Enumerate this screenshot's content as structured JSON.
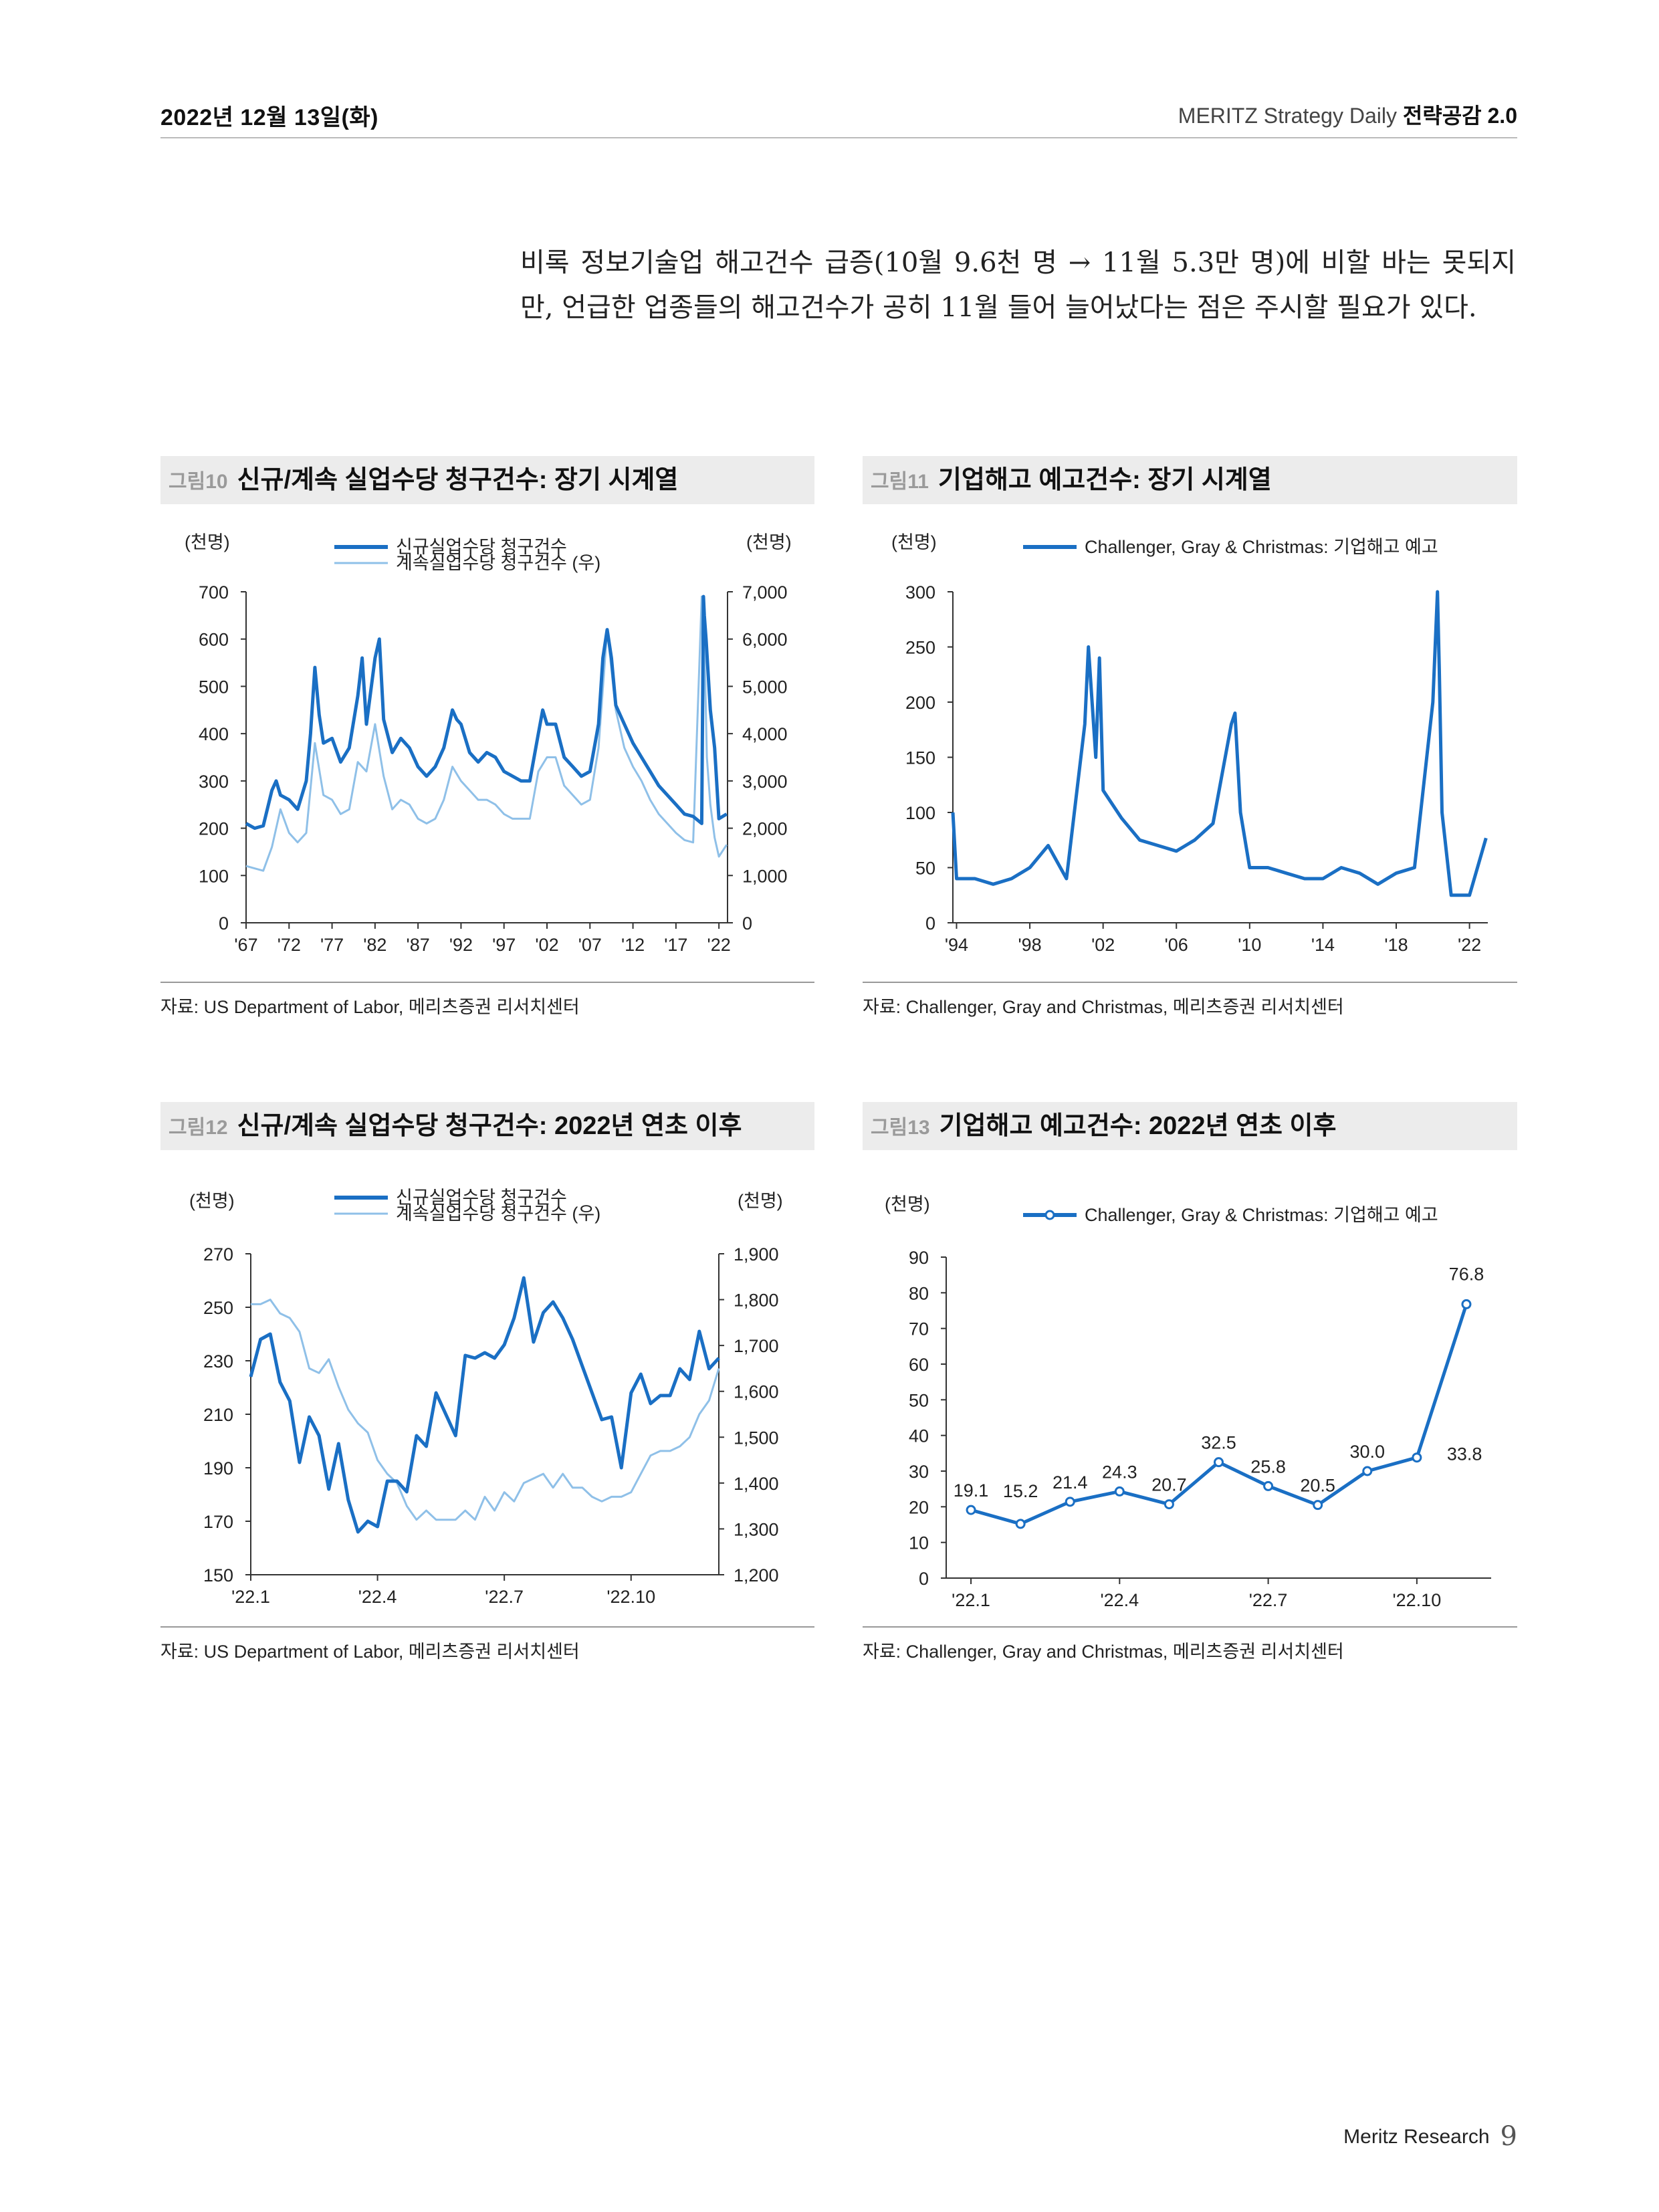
{
  "header": {
    "date": "2022년 12월 13일(화)",
    "publication": "MERITZ Strategy Daily",
    "series_name": "전략공감 2.0"
  },
  "body_text": "비록 정보기술업 해고건수 급증(10월 9.6천 명 → 11월 5.3만 명)에 비할 바는 못되지만, 언급한 업종들의 해고건수가 공히 11월 들어 늘어났다는 점은 주시할 필요가 있다.",
  "figures": [
    {
      "num": "그림10",
      "title": "신규/계속 실업수당 청구건수: 장기 시계열",
      "source": "자료: US Department of Labor, 메리츠증권 리서치센터"
    },
    {
      "num": "그림11",
      "title": "기업해고 예고건수: 장기 시계열",
      "source": "자료: Challenger, Gray and Christmas, 메리츠증권 리서치센터"
    },
    {
      "num": "그림12",
      "title": "신규/계속 실업수당 청구건수: 2022년 연초 이후",
      "source": "자료: US Department of Labor, 메리츠증권 리서치센터"
    },
    {
      "num": "그림13",
      "title": "기업해고 예고건수: 2022년 연초 이후",
      "source": "자료: Challenger, Gray and Christmas, 메리츠증권 리서치센터"
    }
  ],
  "footer": {
    "brand": "Meritz Research",
    "page": "9"
  },
  "colors": {
    "dark_series": "#1a6fc4",
    "light_series": "#8fc0e8",
    "axis": "#333333"
  },
  "chart_data": [
    {
      "id": "fig10",
      "type": "line",
      "title": "신규/계속 실업수당 청구건수: 장기 시계열",
      "yunit_left": "(천명)",
      "yunit_right": "(천명)",
      "ylim_left": [
        0,
        700
      ],
      "yticks_left": [
        "0",
        "100",
        "200",
        "300",
        "400",
        "500",
        "600",
        "700"
      ],
      "ylim_right": [
        0,
        7000
      ],
      "yticks_right": [
        "0",
        "1,000",
        "2,000",
        "3,000",
        "4,000",
        "5,000",
        "6,000",
        "7,000"
      ],
      "xlim": [
        1967,
        2023
      ],
      "xticks": [
        {
          "x": 1967,
          "label": "'67"
        },
        {
          "x": 1972,
          "label": "'72"
        },
        {
          "x": 1977,
          "label": "'77"
        },
        {
          "x": 1982,
          "label": "'82"
        },
        {
          "x": 1987,
          "label": "'87"
        },
        {
          "x": 1992,
          "label": "'92"
        },
        {
          "x": 1997,
          "label": "'97"
        },
        {
          "x": 2002,
          "label": "'02"
        },
        {
          "x": 2007,
          "label": "'07"
        },
        {
          "x": 2012,
          "label": "'12"
        },
        {
          "x": 2017,
          "label": "'17"
        },
        {
          "x": 2022,
          "label": "'22"
        }
      ],
      "series": [
        {
          "name": "신규실업수당 청구건수",
          "axis": "left",
          "style": "dark",
          "x": [
            1967,
            1968,
            1969,
            1970,
            1970.5,
            1971,
            1972,
            1973,
            1974,
            1974.5,
            1975,
            1975.5,
            1976,
            1977,
            1978,
            1979,
            1980,
            1980.5,
            1981,
            1982,
            1982.5,
            1983,
            1984,
            1985,
            1986,
            1987,
            1988,
            1989,
            1990,
            1991,
            1991.5,
            1992,
            1993,
            1994,
            1995,
            1996,
            1997,
            1998,
            1999,
            2000,
            2001,
            2001.5,
            2002,
            2003,
            2004,
            2005,
            2006,
            2007,
            2008,
            2008.5,
            2009,
            2009.5,
            2010,
            2011,
            2012,
            2013,
            2014,
            2015,
            2016,
            2017,
            2018,
            2019,
            2020,
            2020.2,
            2020.3,
            2020.5,
            2021,
            2021.5,
            2022,
            2022.9
          ],
          "y": [
            210,
            200,
            205,
            280,
            300,
            270,
            260,
            240,
            300,
            400,
            540,
            440,
            380,
            390,
            340,
            370,
            480,
            560,
            420,
            560,
            600,
            430,
            360,
            390,
            370,
            330,
            310,
            330,
            370,
            450,
            430,
            420,
            360,
            340,
            360,
            350,
            320,
            310,
            300,
            300,
            400,
            450,
            420,
            420,
            350,
            330,
            310,
            320,
            420,
            560,
            620,
            560,
            460,
            420,
            380,
            350,
            320,
            290,
            270,
            250,
            230,
            225,
            210,
            690,
            650,
            600,
            450,
            370,
            220,
            230
          ]
        },
        {
          "name": "계속실업수당 청구건수 (우)",
          "axis": "right",
          "style": "light",
          "x": [
            1967,
            1968,
            1969,
            1970,
            1971,
            1972,
            1973,
            1974,
            1975,
            1976,
            1977,
            1978,
            1979,
            1980,
            1981,
            1982,
            1983,
            1984,
            1985,
            1986,
            1987,
            1988,
            1989,
            1990,
            1991,
            1992,
            1993,
            1994,
            1995,
            1996,
            1997,
            1998,
            1999,
            2000,
            2001,
            2002,
            2003,
            2004,
            2005,
            2006,
            2007,
            2008,
            2009,
            2010,
            2011,
            2012,
            2013,
            2014,
            2015,
            2016,
            2017,
            2018,
            2019,
            2020,
            2020.3,
            2020.6,
            2021,
            2021.5,
            2022,
            2022.9
          ],
          "y": [
            1200,
            1150,
            1100,
            1600,
            2400,
            1900,
            1700,
            1900,
            3800,
            2700,
            2600,
            2300,
            2400,
            3400,
            3200,
            4200,
            3100,
            2400,
            2600,
            2500,
            2200,
            2100,
            2200,
            2600,
            3300,
            3000,
            2800,
            2600,
            2600,
            2500,
            2300,
            2200,
            2200,
            2200,
            3200,
            3500,
            3500,
            2900,
            2700,
            2500,
            2600,
            3700,
            6200,
            4500,
            3700,
            3300,
            3000,
            2600,
            2300,
            2100,
            1900,
            1750,
            1700,
            6900,
            6000,
            3500,
            2500,
            1800,
            1400,
            1650
          ]
        }
      ]
    },
    {
      "id": "fig11",
      "type": "line",
      "title": "기업해고 예고건수: 장기 시계열",
      "yunit_left": "(천명)",
      "ylim_left": [
        0,
        300
      ],
      "yticks_left": [
        "0",
        "50",
        "100",
        "150",
        "200",
        "250",
        "300"
      ],
      "xlim": [
        1993.8,
        2023
      ],
      "xticks": [
        {
          "x": 1994,
          "label": "'94"
        },
        {
          "x": 1998,
          "label": "'98"
        },
        {
          "x": 2002,
          "label": "'02"
        },
        {
          "x": 2006,
          "label": "'06"
        },
        {
          "x": 2010,
          "label": "'10"
        },
        {
          "x": 2014,
          "label": "'14"
        },
        {
          "x": 2018,
          "label": "'18"
        },
        {
          "x": 2022,
          "label": "'22"
        }
      ],
      "series": [
        {
          "name": "Challenger, Gray & Christmas: 기업해고 예고",
          "axis": "left",
          "style": "dark",
          "x": [
            1993.8,
            1994,
            1995,
            1996,
            1997,
            1998,
            1999,
            2000,
            2001,
            2001.2,
            2001.4,
            2001.6,
            2001.8,
            2002,
            2003,
            2004,
            2005,
            2006,
            2007,
            2008,
            2009,
            2009.2,
            2009.5,
            2010,
            2011,
            2012,
            2013,
            2014,
            2015,
            2016,
            2017,
            2018,
            2019,
            2020,
            2020.25,
            2020.35,
            2020.5,
            2021,
            2022,
            2022.9
          ],
          "y": [
            100,
            40,
            40,
            35,
            40,
            50,
            70,
            40,
            180,
            250,
            200,
            150,
            240,
            120,
            95,
            75,
            70,
            65,
            75,
            90,
            180,
            190,
            100,
            50,
            50,
            45,
            40,
            40,
            50,
            45,
            35,
            45,
            50,
            200,
            300,
            230,
            100,
            25,
            25,
            76.8
          ]
        }
      ]
    },
    {
      "id": "fig12",
      "type": "line",
      "title": "신규/계속 실업수당 청구건수: 2022년 연초 이후",
      "yunit_left": "(천명)",
      "yunit_right": "(천명)",
      "ylim_left": [
        150,
        270
      ],
      "yticks_left": [
        "150",
        "170",
        "190",
        "210",
        "230",
        "250",
        "270"
      ],
      "ylim_right": [
        1200,
        1900
      ],
      "yticks_right": [
        "1,200",
        "1,300",
        "1,400",
        "1,500",
        "1,600",
        "1,700",
        "1,800",
        "1,900"
      ],
      "xticks": [
        {
          "x": 0,
          "label": "'22.1"
        },
        {
          "x": 13,
          "label": "'22.4"
        },
        {
          "x": 26,
          "label": "'22.7"
        },
        {
          "x": 39,
          "label": "'22.10"
        }
      ],
      "series": [
        {
          "name": "신규실업수당 청구건수",
          "axis": "left",
          "style": "dark",
          "x": [
            0,
            1,
            2,
            3,
            4,
            5,
            6,
            7,
            8,
            9,
            10,
            11,
            12,
            13,
            14,
            15,
            16,
            17,
            18,
            19,
            20,
            21,
            22,
            23,
            24,
            25,
            26,
            27,
            28,
            29,
            30,
            31,
            32,
            33,
            34,
            35,
            36,
            37,
            38,
            39,
            40,
            41,
            42,
            43,
            44,
            45,
            46,
            47,
            48
          ],
          "y": [
            224,
            238,
            240,
            222,
            215,
            192,
            209,
            202,
            182,
            199,
            178,
            166,
            170,
            168,
            185,
            185,
            181,
            202,
            198,
            218,
            210,
            202,
            232,
            231,
            233,
            231,
            236,
            246,
            261,
            237,
            248,
            252,
            246,
            238,
            228,
            218,
            208,
            209,
            190,
            218,
            225,
            214,
            217,
            217,
            227,
            223,
            241,
            227,
            231
          ]
        },
        {
          "name": "계속실업수당 청구건수 (우)",
          "axis": "right",
          "style": "light",
          "x": [
            0,
            1,
            2,
            3,
            4,
            5,
            6,
            7,
            8,
            9,
            10,
            11,
            12,
            13,
            14,
            15,
            16,
            17,
            18,
            19,
            20,
            21,
            22,
            23,
            24,
            25,
            26,
            27,
            28,
            29,
            30,
            31,
            32,
            33,
            34,
            35,
            36,
            37,
            38,
            39,
            40,
            41,
            42,
            43,
            44,
            45,
            46,
            47,
            48
          ],
          "y": [
            1790,
            1790,
            1800,
            1770,
            1760,
            1730,
            1650,
            1640,
            1670,
            1610,
            1560,
            1530,
            1510,
            1450,
            1420,
            1400,
            1350,
            1320,
            1340,
            1320,
            1320,
            1320,
            1340,
            1320,
            1370,
            1340,
            1380,
            1360,
            1400,
            1410,
            1420,
            1390,
            1420,
            1390,
            1390,
            1370,
            1360,
            1370,
            1370,
            1380,
            1420,
            1460,
            1470,
            1470,
            1480,
            1500,
            1550,
            1580,
            1650
          ]
        }
      ]
    },
    {
      "id": "fig13",
      "type": "line",
      "title": "기업해고 예고건수: 2022년 연초 이후",
      "yunit_left": "(천명)",
      "ylim_left": [
        0,
        90
      ],
      "yticks_left": [
        "0",
        "10",
        "20",
        "30",
        "40",
        "50",
        "60",
        "70",
        "80",
        "90"
      ],
      "categories": [
        "'22.1",
        "'22.2",
        "'22.3",
        "'22.4",
        "'22.5",
        "'22.6",
        "'22.7",
        "'22.8",
        "'22.9",
        "'22.10",
        "'22.11"
      ],
      "xticks": [
        {
          "x": 0,
          "label": "'22.1"
        },
        {
          "x": 3,
          "label": "'22.4"
        },
        {
          "x": 6,
          "label": "'22.7"
        },
        {
          "x": 9,
          "label": "'22.10"
        }
      ],
      "series": [
        {
          "name": "Challenger, Gray & Christmas: 기업해고 예고",
          "axis": "left",
          "style": "dark",
          "values": [
            19.1,
            15.2,
            21.4,
            24.3,
            20.7,
            32.5,
            25.8,
            20.5,
            30.0,
            33.8,
            76.8
          ],
          "labels": [
            "19.1",
            "15.2",
            "21.4",
            "24.3",
            "20.7",
            "32.5",
            "25.8",
            "20.5",
            "30.0",
            "33.8",
            "76.8"
          ]
        }
      ]
    }
  ]
}
